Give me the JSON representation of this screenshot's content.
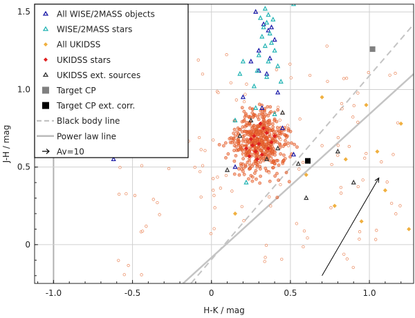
{
  "chart_data": {
    "type": "scatter",
    "title": "",
    "xlabel": "H-K / mag",
    "ylabel": "J-H / mag",
    "xlim": [
      -1.12,
      1.28
    ],
    "ylim": [
      -0.25,
      1.55
    ],
    "x_ticks": [
      {
        "value": -1.0,
        "label": "-1.0"
      },
      {
        "value": -0.5,
        "label": "-0.5"
      },
      {
        "value": 0.0,
        "label": "0"
      },
      {
        "value": 0.5,
        "label": "0.5"
      },
      {
        "value": 1.0,
        "label": "1.0"
      }
    ],
    "y_ticks": [
      {
        "value": 0.0,
        "label": "0"
      },
      {
        "value": 0.5,
        "label": "0.5"
      },
      {
        "value": 1.0,
        "label": "1.0"
      },
      {
        "value": 1.5,
        "label": "1.5"
      }
    ],
    "grid": true,
    "legend_position": "top-left",
    "legend": [
      {
        "label": "All WISE/2MASS objects",
        "color": "#1a1aa8",
        "marker": "triangle"
      },
      {
        "label": "WISE/2MASS stars",
        "color": "#21b3b3",
        "marker": "triangle"
      },
      {
        "label": "All UKIDSS",
        "color": "#f0b040",
        "marker": "diamond"
      },
      {
        "label": "UKIDSS stars",
        "color": "#e02020",
        "marker": "diamond"
      },
      {
        "label": "UKIDSS ext. sources",
        "color": "#333333",
        "marker": "triangle"
      },
      {
        "label": "Target CP",
        "color": "#808080",
        "marker": "square"
      },
      {
        "label": "Target CP ext. corr.",
        "color": "#000000",
        "marker": "square"
      },
      {
        "label": "Black body line",
        "color": "#bbbbbb",
        "marker": "dashed-line"
      },
      {
        "label": "Power law line",
        "color": "#bbbbbb",
        "marker": "solid-line"
      },
      {
        "label": "Av=10",
        "color": "#000000",
        "marker": "arrow"
      }
    ],
    "series": [
      {
        "name": "All WISE/2MASS objects",
        "color": "#1a1aa8",
        "points": [
          [
            0.28,
            1.5
          ],
          [
            0.33,
            1.42
          ],
          [
            0.38,
            1.4
          ],
          [
            0.36,
            1.38
          ],
          [
            0.4,
            1.32
          ],
          [
            0.25,
            1.18
          ],
          [
            0.3,
            1.12
          ],
          [
            0.35,
            1.1
          ],
          [
            0.42,
            0.98
          ],
          [
            0.2,
            0.95
          ],
          [
            0.32,
            0.88
          ],
          [
            0.45,
            0.75
          ],
          [
            -0.62,
            0.55
          ],
          [
            0.15,
            0.5
          ],
          [
            0.52,
            0.58
          ],
          [
            0.3,
            1.25
          ],
          [
            0.37,
            1.2
          ]
        ]
      },
      {
        "name": "WISE/2MASS stars",
        "color": "#21b3b3",
        "points": [
          [
            0.34,
            1.52
          ],
          [
            0.36,
            1.48
          ],
          [
            0.31,
            1.46
          ],
          [
            0.39,
            1.45
          ],
          [
            0.35,
            1.43
          ],
          [
            0.33,
            1.4
          ],
          [
            0.37,
            1.36
          ],
          [
            0.32,
            1.34
          ],
          [
            0.38,
            1.3
          ],
          [
            0.34,
            1.28
          ],
          [
            0.4,
            1.25
          ],
          [
            0.3,
            1.22
          ],
          [
            0.36,
            1.18
          ],
          [
            0.42,
            1.15
          ],
          [
            0.29,
            1.12
          ],
          [
            0.35,
            1.08
          ],
          [
            0.44,
            1.05
          ],
          [
            0.27,
            1.02
          ],
          [
            0.2,
            1.18
          ],
          [
            0.18,
            1.1
          ],
          [
            0.52,
            1.55
          ],
          [
            0.28,
            0.88
          ],
          [
            0.4,
            0.84
          ],
          [
            0.15,
            0.8
          ],
          [
            0.22,
            0.4
          ]
        ]
      },
      {
        "name": "All UKIDSS",
        "color": "#f0b040",
        "points": [
          [
            1.05,
            0.6
          ],
          [
            0.95,
            0.15
          ],
          [
            1.1,
            0.35
          ],
          [
            0.78,
            0.25
          ],
          [
            0.85,
            0.55
          ],
          [
            0.6,
            0.45
          ],
          [
            1.2,
            0.78
          ],
          [
            0.7,
            0.95
          ],
          [
            0.98,
            0.9
          ],
          [
            0.15,
            0.2
          ],
          [
            1.25,
            0.1
          ]
        ]
      },
      {
        "name": "UKIDSS stars",
        "color": "#e02020",
        "points": [
          [
            0.3,
            0.65
          ],
          [
            0.25,
            0.68
          ],
          [
            0.35,
            0.72
          ],
          [
            0.28,
            0.6
          ],
          [
            0.32,
            0.58
          ],
          [
            0.38,
            0.66
          ],
          [
            0.22,
            0.62
          ],
          [
            0.27,
            0.7
          ],
          [
            0.33,
            0.75
          ],
          [
            0.29,
            0.55
          ],
          [
            0.36,
            0.62
          ],
          [
            0.24,
            0.57
          ],
          [
            0.31,
            0.78
          ],
          [
            0.4,
            0.7
          ],
          [
            0.26,
            0.64
          ]
        ]
      },
      {
        "name": "UKIDSS ext. sources",
        "color": "#333333",
        "points": [
          [
            0.35,
            0.55
          ],
          [
            0.42,
            0.62
          ],
          [
            0.25,
            0.8
          ],
          [
            0.1,
            0.48
          ],
          [
            0.55,
            0.52
          ],
          [
            0.45,
            0.85
          ],
          [
            0.18,
            0.7
          ],
          [
            0.6,
            0.3
          ],
          [
            0.8,
            0.6
          ],
          [
            0.9,
            0.4
          ]
        ]
      }
    ],
    "target_cp": {
      "x": 1.02,
      "y": 1.26
    },
    "target_cp_ext_corr": {
      "x": 0.61,
      "y": 0.54
    },
    "black_body_line": {
      "points": [
        [
          -0.13,
          -0.25
        ],
        [
          1.28,
          1.42
        ]
      ]
    },
    "power_law_line": {
      "points": [
        [
          -0.18,
          -0.25
        ],
        [
          1.28,
          1.1
        ]
      ]
    },
    "av_vector": {
      "from": [
        0.7,
        -0.2
      ],
      "to": [
        1.06,
        0.43
      ],
      "label": "Av=10"
    }
  }
}
